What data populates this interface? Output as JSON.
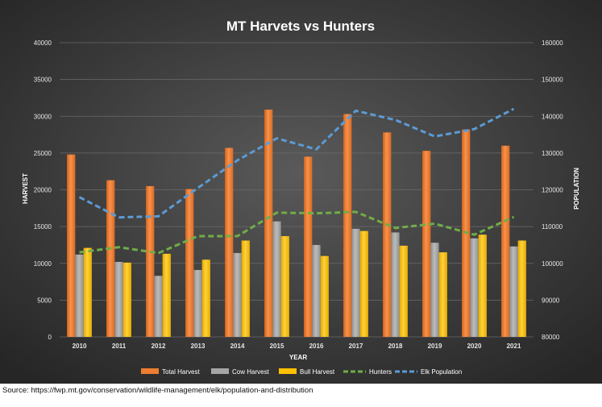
{
  "chart_data": {
    "type": "bar",
    "title": "MT Harvets vs Hunters",
    "xlabel": "YEAR",
    "ylabel": "HARVEST",
    "y2label": "POPULATION",
    "categories": [
      "2010",
      "2011",
      "2012",
      "2013",
      "2014",
      "2015",
      "2016",
      "2017",
      "2018",
      "2019",
      "2020",
      "2021"
    ],
    "ylim": [
      0,
      40000
    ],
    "y2lim": [
      80000,
      160000
    ],
    "yticks": [
      "0",
      "5000",
      "10000",
      "15000",
      "20000",
      "25000",
      "30000",
      "35000",
      "40000"
    ],
    "y2ticks": [
      "80000",
      "90000",
      "100000",
      "110000",
      "120000",
      "130000",
      "140000",
      "150000",
      "160000"
    ],
    "grid": true,
    "legend_position": "bottom",
    "series": [
      {
        "name": "Total Harvest",
        "kind": "bar",
        "axis": "left",
        "color": "#ed7d31",
        "values": [
          24800,
          21300,
          20500,
          20100,
          25700,
          30900,
          24500,
          30300,
          27800,
          25300,
          28200,
          26000
        ]
      },
      {
        "name": "Cow Harvest",
        "kind": "bar",
        "axis": "left",
        "color": "#a5a5a5",
        "values": [
          11200,
          10200,
          8300,
          9100,
          11400,
          15700,
          12500,
          14700,
          14200,
          12800,
          13400,
          12300
        ]
      },
      {
        "name": "Bull Harvest",
        "kind": "bar",
        "axis": "left",
        "color": "#ffc000",
        "values": [
          12100,
          10100,
          11300,
          10500,
          13100,
          13700,
          11000,
          14400,
          12400,
          11500,
          13900,
          13100
        ]
      },
      {
        "name": "Hunters",
        "kind": "line",
        "axis": "left",
        "color": "#70ad47",
        "dash": "dash",
        "values": [
          11500,
          12200,
          11400,
          13700,
          13700,
          16900,
          16800,
          17000,
          14800,
          15400,
          13900,
          16300
        ]
      },
      {
        "name": "Elk Population",
        "kind": "line",
        "axis": "right",
        "color": "#5b9bd5",
        "dash": "dash",
        "values": [
          118000,
          112500,
          112800,
          120500,
          128000,
          134000,
          131000,
          141500,
          139000,
          134500,
          136500,
          142000
        ]
      }
    ]
  },
  "source_note": "Source: https://fwp.mt.gov/conservation/wildlife-management/elk/population-and-distribution"
}
